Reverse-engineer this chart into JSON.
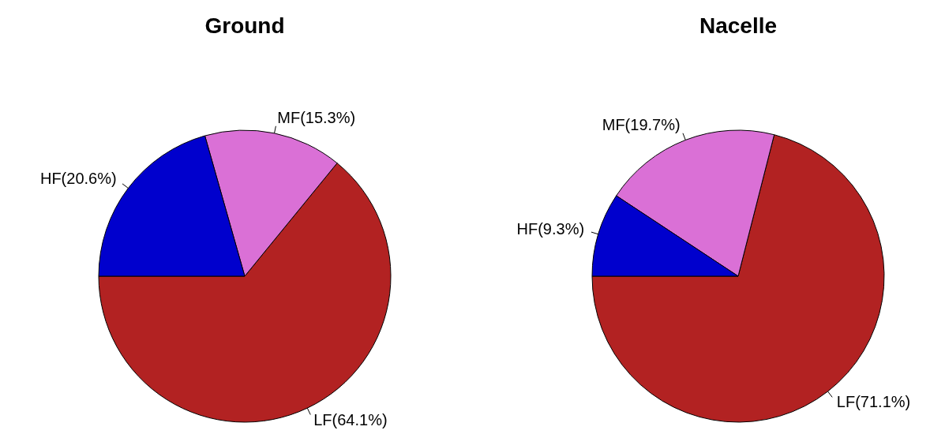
{
  "chart_data": [
    {
      "type": "pie",
      "title": "Ground",
      "categories": [
        "LF(64.1%)",
        "MF(15.3%)",
        "HF(20.6%)"
      ],
      "values": [
        64.1,
        15.3,
        20.6
      ],
      "colors": [
        "#b22222",
        "#da70d6",
        "#0000cd"
      ]
    },
    {
      "type": "pie",
      "title": "Nacelle",
      "categories": [
        "LF(71.1%)",
        "MF(19.7%)",
        "HF(9.3%)"
      ],
      "values": [
        71.1,
        19.7,
        9.3
      ],
      "colors": [
        "#b22222",
        "#da70d6",
        "#0000cd"
      ]
    }
  ]
}
